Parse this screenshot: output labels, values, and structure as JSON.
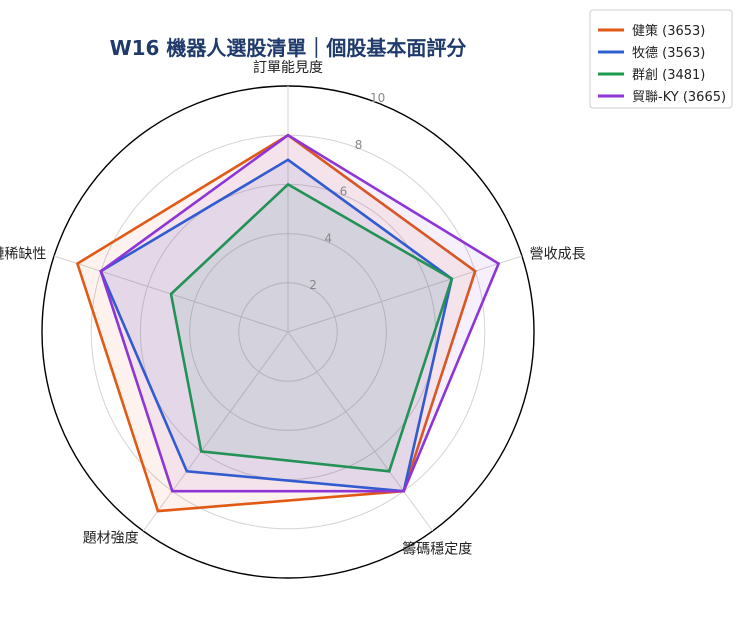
{
  "chart_data": {
    "type": "radar",
    "title": "W16 機器人選股清單｜個股基本面評分",
    "axes": [
      "營收成長",
      "訂單能見度",
      "供應鏈稀缺性",
      "題材強度",
      "籌碼穩定度"
    ],
    "rlim": [
      0,
      10
    ],
    "r_ticks": [
      2,
      4,
      6,
      8,
      10
    ],
    "r_tick_labels": [
      "2",
      "4",
      "6",
      "8",
      "10"
    ],
    "grid": true,
    "legend_position": "top-right",
    "series": [
      {
        "name": "健策 (3653)",
        "color": "#e05a16",
        "values": [
          8,
          8,
          9,
          9,
          8
        ]
      },
      {
        "name": "牧德 (3563)",
        "color": "#2b5fd0",
        "values": [
          7,
          7,
          8,
          7,
          8
        ]
      },
      {
        "name": "群創 (3481)",
        "color": "#1c9a4c",
        "values": [
          7,
          6,
          5,
          6,
          7
        ]
      },
      {
        "name": "貿聯-KY (3665)",
        "color": "#8e35d6",
        "values": [
          9,
          8,
          8,
          8,
          8
        ]
      }
    ]
  }
}
